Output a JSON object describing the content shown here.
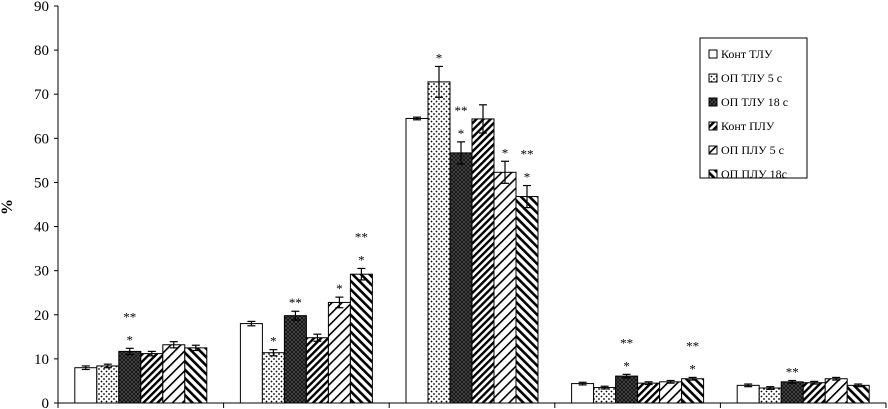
{
  "chart_data": {
    "type": "bar",
    "title": "",
    "xlabel": "",
    "ylabel": "%",
    "ylim": [
      0,
      90
    ],
    "yticks": [
      0,
      10,
      20,
      30,
      40,
      50,
      60,
      70,
      80,
      90
    ],
    "grid": false,
    "legend_position": "right",
    "categories": [
      "",
      "",
      "",
      "",
      ""
    ],
    "series": [
      {
        "name": "Конт ТЛУ",
        "pattern": "white",
        "values": [
          8.0,
          18.0,
          64.5,
          4.4,
          4.0
        ],
        "errors": [
          0.4,
          0.5,
          0.3,
          0.3,
          0.3
        ]
      },
      {
        "name": "ОП ТЛУ 5 с",
        "pattern": "dots",
        "values": [
          8.4,
          11.4,
          72.8,
          3.5,
          3.4
        ],
        "errors": [
          0.4,
          0.7,
          3.5,
          0.3,
          0.3
        ]
      },
      {
        "name": "ОП ТЛУ 18 с",
        "pattern": "crosshatch",
        "values": [
          11.7,
          19.8,
          56.7,
          6.1,
          4.8
        ],
        "errors": [
          0.7,
          1.0,
          2.5,
          0.4,
          0.3
        ]
      },
      {
        "name": "Конт ПЛУ",
        "pattern": "diag-dense",
        "values": [
          11.2,
          14.8,
          64.4,
          4.5,
          4.6
        ],
        "errors": [
          0.5,
          0.8,
          3.2,
          0.3,
          0.3
        ]
      },
      {
        "name": "ОП ПЛУ 5 с",
        "pattern": "diag-sparse",
        "values": [
          13.2,
          22.8,
          52.3,
          4.8,
          5.5
        ],
        "errors": [
          0.7,
          1.2,
          2.5,
          0.3,
          0.3
        ]
      },
      {
        "name": "ОП ПЛУ 18с",
        "pattern": "diag-wide",
        "values": [
          12.5,
          29.2,
          46.8,
          5.5,
          4.0
        ],
        "errors": [
          0.6,
          1.3,
          2.5,
          0.3,
          0.3
        ]
      }
    ],
    "annotations": [
      {
        "category": 0,
        "series": 2,
        "marks": [
          "**",
          "*"
        ]
      },
      {
        "category": 1,
        "series": 1,
        "marks": [
          "*"
        ]
      },
      {
        "category": 1,
        "series": 2,
        "marks": [
          "**"
        ]
      },
      {
        "category": 1,
        "series": 4,
        "marks": [
          "*"
        ]
      },
      {
        "category": 1,
        "series": 5,
        "marks": [
          "**",
          "*"
        ]
      },
      {
        "category": 2,
        "series": 1,
        "marks": [
          "*"
        ]
      },
      {
        "category": 2,
        "series": 2,
        "marks": [
          "**",
          "*"
        ]
      },
      {
        "category": 2,
        "series": 4,
        "marks": [
          "*"
        ]
      },
      {
        "category": 2,
        "series": 5,
        "marks": [
          "**",
          "*"
        ]
      },
      {
        "category": 3,
        "series": 2,
        "marks": [
          "**",
          "*"
        ]
      },
      {
        "category": 3,
        "series": 5,
        "marks": [
          "**",
          "*"
        ]
      },
      {
        "category": 4,
        "series": 2,
        "marks": [
          "**"
        ]
      }
    ]
  }
}
